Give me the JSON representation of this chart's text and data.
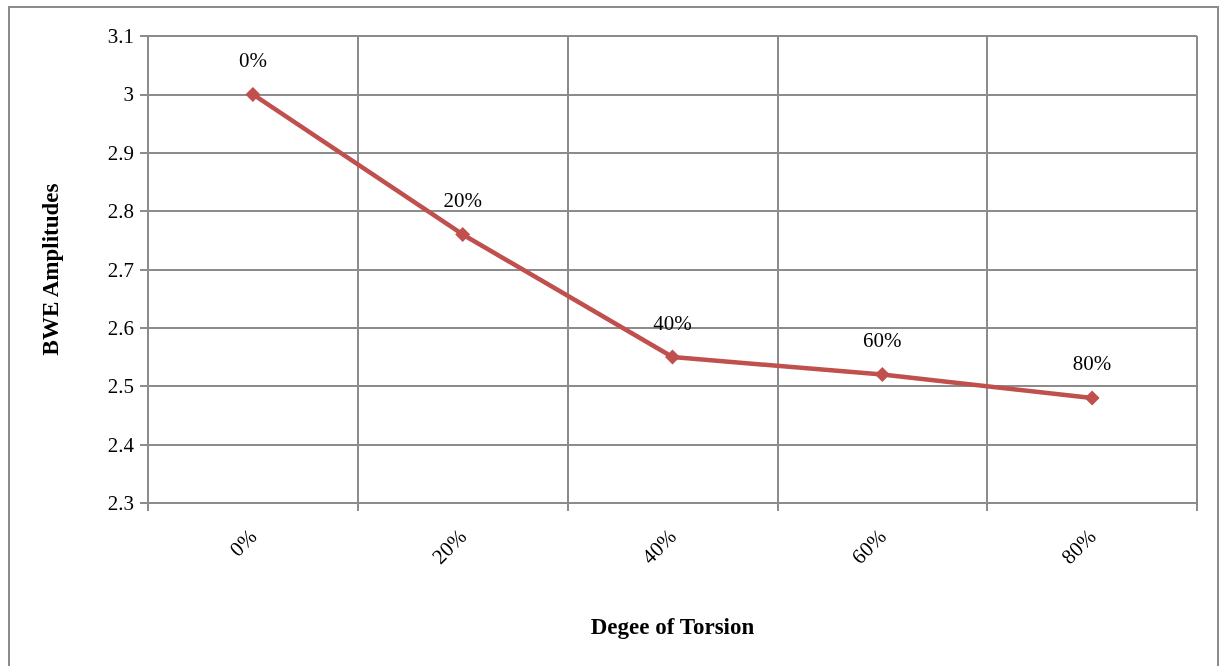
{
  "chart_data": {
    "type": "line",
    "xlabel": "Degee of Torsion",
    "ylabel": "BWE Amplitudes",
    "categories": [
      "0%",
      "20%",
      "40%",
      "60%",
      "80%"
    ],
    "series": [
      {
        "color": "#c0504d",
        "values": [
          3.0,
          2.76,
          2.55,
          2.52,
          2.48
        ]
      }
    ],
    "annotations": [
      {
        "text": "0%",
        "x": "0%",
        "y": 3.0
      },
      {
        "text": "20%",
        "x": "20%",
        "y": 2.76
      },
      {
        "text": "40%",
        "x": "40%",
        "y": 2.55
      },
      {
        "text": "60%",
        "x": "60%",
        "y": 2.52
      },
      {
        "text": "80%",
        "x": "80%",
        "y": 2.48
      }
    ],
    "ylim": [
      2.3,
      3.1
    ],
    "yticks": [
      2.3,
      2.4,
      2.5,
      2.6,
      2.7,
      2.8,
      2.9,
      3,
      3.1
    ],
    "grid": true,
    "marker": "diamond",
    "line_style": "solid"
  }
}
